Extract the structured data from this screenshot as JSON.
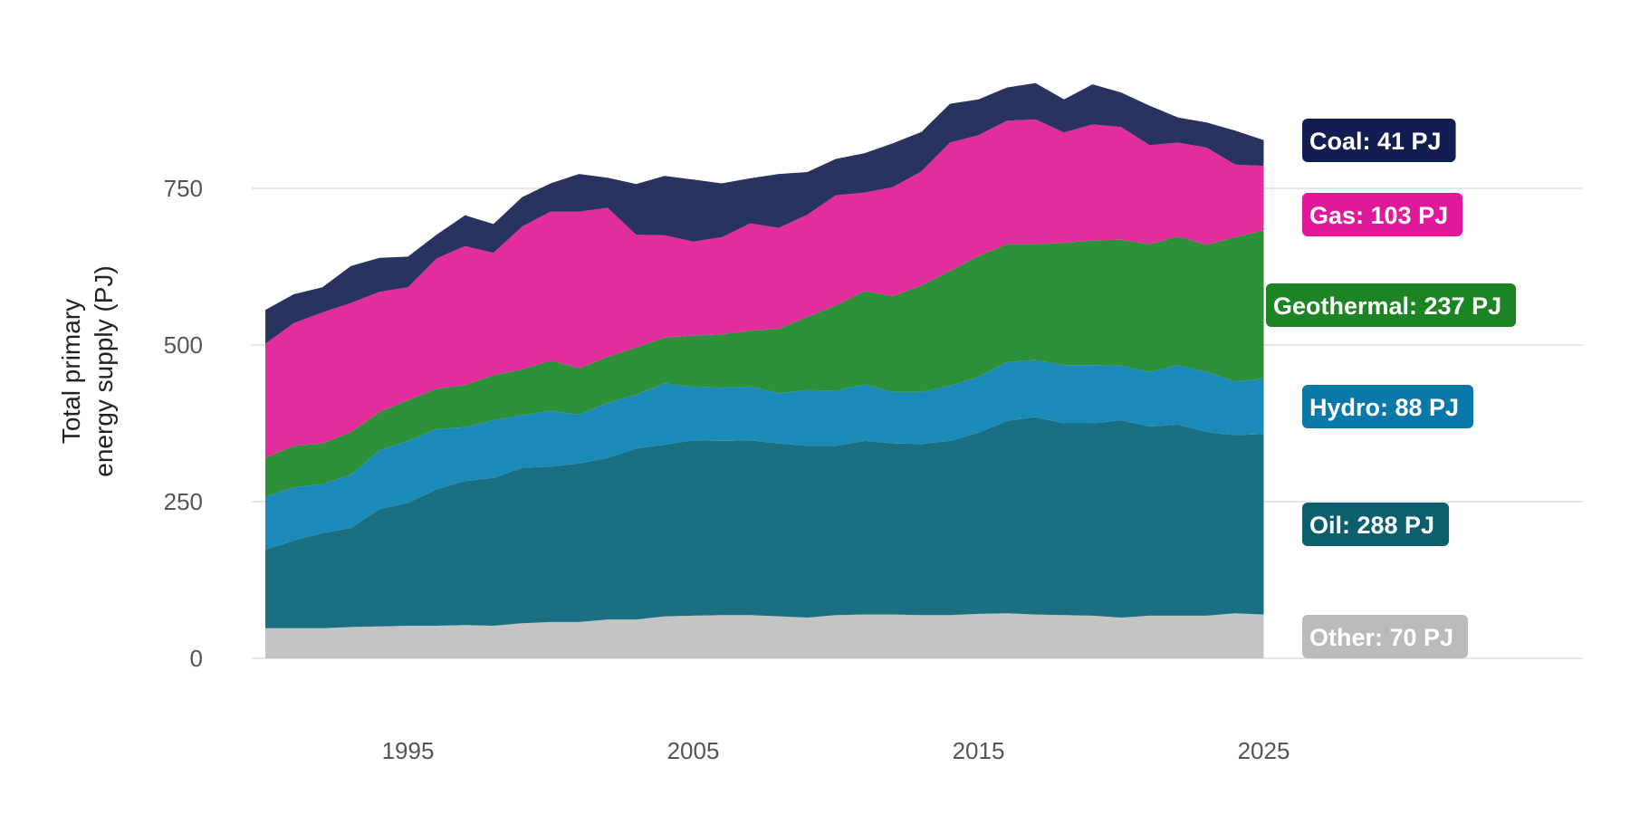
{
  "chart_data": {
    "type": "area",
    "stacked": true,
    "title": "",
    "xlabel": "",
    "ylabel": "Total primary energy supply (PJ)",
    "ylabel_lines": [
      "Total primary",
      "energy supply (PJ)"
    ],
    "xlim": [
      1990,
      2035
    ],
    "ylim": [
      0,
      900
    ],
    "x_ticks": [
      1995,
      2005,
      2015,
      2025
    ],
    "y_ticks": [
      0,
      250,
      500,
      750
    ],
    "grid": "horizontal",
    "legend": "direct labels at right end of series",
    "x": [
      1990,
      1991,
      1992,
      1993,
      1994,
      1995,
      1996,
      1997,
      1998,
      1999,
      2000,
      2001,
      2002,
      2003,
      2004,
      2005,
      2006,
      2007,
      2008,
      2009,
      2010,
      2011,
      2012,
      2013,
      2014,
      2015,
      2016,
      2017,
      2018,
      2019,
      2020,
      2021,
      2022,
      2023,
      2024,
      2025
    ],
    "series": [
      {
        "name": "Other",
        "color": "#c4c4c4",
        "values": [
          48,
          48,
          48,
          50,
          51,
          52,
          52,
          53,
          52,
          56,
          58,
          58,
          62,
          62,
          67,
          68,
          69,
          69,
          67,
          65,
          69,
          70,
          70,
          69,
          69,
          71,
          72,
          70,
          69,
          68,
          65,
          68,
          68,
          68,
          72,
          70
        ]
      },
      {
        "name": "Oil",
        "color": "#1b6f82",
        "values": [
          125,
          140,
          152,
          158,
          187,
          196,
          218,
          230,
          236,
          248,
          248,
          253,
          258,
          273,
          274,
          280,
          278,
          279,
          276,
          274,
          270,
          277,
          273,
          273,
          278,
          289,
          307,
          315,
          306,
          307,
          315,
          302,
          305,
          293,
          284,
          288
        ]
      },
      {
        "name": "Hydro",
        "color": "#1a8ab8",
        "values": [
          85,
          85,
          78,
          85,
          94,
          99,
          96,
          86,
          92,
          84,
          89,
          78,
          88,
          86,
          98,
          85,
          85,
          86,
          80,
          89,
          88,
          90,
          82,
          83,
          88,
          89,
          94,
          91,
          93,
          93,
          87,
          87,
          95,
          96,
          86,
          88
        ]
      },
      {
        "name": "Geothermal",
        "color": "#2d8f38",
        "values": [
          62,
          66,
          65,
          68,
          61,
          65,
          64,
          67,
          72,
          73,
          80,
          74,
          73,
          75,
          73,
          82,
          85,
          89,
          103,
          117,
          136,
          149,
          153,
          170,
          183,
          193,
          188,
          185,
          195,
          199,
          201,
          204,
          205,
          203,
          230,
          237
        ]
      },
      {
        "name": "Gas",
        "color": "#e22e9d",
        "values": [
          182,
          196,
          209,
          206,
          192,
          180,
          208,
          222,
          195,
          228,
          238,
          250,
          238,
          180,
          163,
          150,
          155,
          171,
          161,
          163,
          176,
          157,
          174,
          182,
          205,
          193,
          197,
          199,
          176,
          185,
          180,
          158,
          150,
          155,
          116,
          103
        ]
      },
      {
        "name": "Coal",
        "color": "#283360",
        "values": [
          54,
          46,
          40,
          59,
          54,
          49,
          38,
          49,
          46,
          47,
          45,
          60,
          48,
          81,
          95,
          99,
          86,
          72,
          86,
          68,
          58,
          63,
          70,
          63,
          62,
          57,
          53,
          58,
          53,
          64,
          55,
          63,
          40,
          40,
          54,
          41
        ]
      }
    ],
    "end_labels": [
      {
        "series": "Coal",
        "text": "Coal: 41 PJ",
        "color": "#121e52"
      },
      {
        "series": "Gas",
        "text": "Gas: 103 PJ",
        "color": "#e0199b"
      },
      {
        "series": "Geothermal",
        "text": "Geothermal: 237 PJ",
        "color": "#1d8423"
      },
      {
        "series": "Hydro",
        "text": "Hydro: 88 PJ",
        "color": "#0a78a8"
      },
      {
        "series": "Oil",
        "text": "Oil: 288 PJ",
        "color": "#0b5f6c"
      },
      {
        "series": "Other",
        "text": "Other: 70 PJ",
        "color": "#bababa"
      }
    ]
  }
}
